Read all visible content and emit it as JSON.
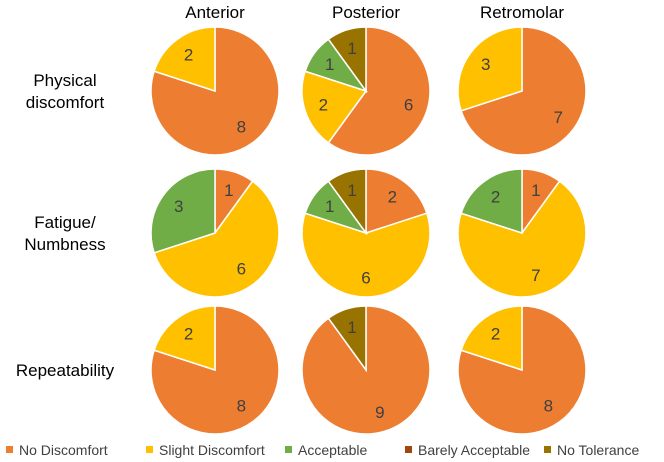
{
  "chart_data": {
    "type": "pie",
    "columns": [
      "Anterior",
      "Posterior",
      "Retromolar"
    ],
    "rows": [
      "Physical discomfort",
      "Fatigue/ Numbness",
      "Repeatability"
    ],
    "row_label_lines": [
      [
        "Physical",
        "discomfort"
      ],
      [
        "Fatigue/",
        "Numbness"
      ],
      [
        "Repeatability"
      ]
    ],
    "categories": [
      "No Discomfort",
      "Slight Discomfort",
      "Acceptable",
      "Barely Acceptable",
      "No Tolerance"
    ],
    "colors": [
      "#ED7D31",
      "#FFC000",
      "#70AD47",
      "#9E480E",
      "#997300"
    ],
    "values": [
      [
        [
          8,
          2,
          0,
          0,
          0
        ],
        [
          6,
          2,
          1,
          0,
          1
        ],
        [
          7,
          3,
          0,
          0,
          0
        ]
      ],
      [
        [
          1,
          6,
          3,
          0,
          0
        ],
        [
          2,
          6,
          1,
          0,
          1
        ],
        [
          1,
          7,
          2,
          0,
          0
        ]
      ],
      [
        [
          8,
          2,
          0,
          0,
          0
        ],
        [
          9,
          0,
          0,
          0,
          1
        ],
        [
          8,
          2,
          0,
          0,
          0
        ]
      ]
    ],
    "legend_position": "bottom"
  }
}
